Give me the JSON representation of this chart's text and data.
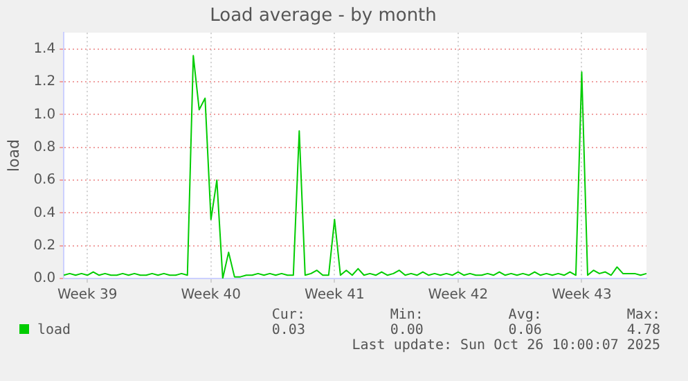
{
  "chart_data": {
    "type": "line",
    "title": "Load average - by month",
    "ylabel": "load",
    "categories": [
      null,
      null,
      null,
      null,
      "Week 39",
      null,
      null,
      null,
      null,
      null,
      null,
      null,
      null,
      null,
      null,
      null,
      null,
      null,
      null,
      null,
      null,
      null,
      null,
      null,
      null,
      "Week 40",
      null,
      null,
      null,
      null,
      null,
      null,
      null,
      null,
      null,
      null,
      null,
      null,
      null,
      null,
      null,
      null,
      null,
      null,
      null,
      null,
      "Week 41",
      null,
      null,
      null,
      null,
      null,
      null,
      null,
      null,
      null,
      null,
      null,
      null,
      null,
      null,
      null,
      null,
      null,
      null,
      null,
      null,
      "Week 42",
      null,
      null,
      null,
      null,
      null,
      null,
      null,
      null,
      null,
      null,
      null,
      null,
      null,
      null,
      null,
      null,
      null,
      null,
      null,
      null,
      "Week 43",
      null,
      null,
      null,
      null,
      null,
      null,
      null,
      null,
      null,
      null,
      null
    ],
    "series": [
      {
        "name": "load",
        "color": "#00cc00",
        "values": [
          0.02,
          0.03,
          0.02,
          0.03,
          0.02,
          0.04,
          0.02,
          0.03,
          0.02,
          0.02,
          0.03,
          0.02,
          0.03,
          0.02,
          0.02,
          0.03,
          0.02,
          0.03,
          0.02,
          0.02,
          0.03,
          0.02,
          1.36,
          1.03,
          1.1,
          0.36,
          0.6,
          0.0,
          0.16,
          0.01,
          0.01,
          0.02,
          0.02,
          0.03,
          0.02,
          0.03,
          0.02,
          0.03,
          0.02,
          0.02,
          0.9,
          0.02,
          0.03,
          0.05,
          0.02,
          0.02,
          0.36,
          0.02,
          0.05,
          0.02,
          0.06,
          0.02,
          0.03,
          0.02,
          0.04,
          0.02,
          0.03,
          0.05,
          0.02,
          0.03,
          0.02,
          0.04,
          0.02,
          0.03,
          0.02,
          0.03,
          0.02,
          0.04,
          0.02,
          0.03,
          0.02,
          0.02,
          0.03,
          0.02,
          0.04,
          0.02,
          0.03,
          0.02,
          0.03,
          0.02,
          0.04,
          0.02,
          0.03,
          0.02,
          0.03,
          0.02,
          0.04,
          0.02,
          1.26,
          0.02,
          0.05,
          0.03,
          0.04,
          0.02,
          0.07,
          0.03,
          0.03,
          0.03,
          0.02,
          0.03
        ]
      }
    ],
    "ylim": [
      0,
      1.5
    ],
    "yticks": [
      {
        "value": 0,
        "label": "0.0"
      },
      0.2,
      0.4,
      0.6,
      0.8,
      {
        "value": 1,
        "label": "1.0"
      },
      1.2,
      1.4
    ],
    "grid": true,
    "legend": "bottom",
    "marker": "none",
    "line_style": "solid",
    "annotations": [
      "Cur:",
      "Min:",
      "Avg:",
      "Max:",
      "0.03",
      "0.00",
      "0.06",
      "4.78",
      "Last update: Sun Oct 26 10:00:07 2025"
    ]
  }
}
